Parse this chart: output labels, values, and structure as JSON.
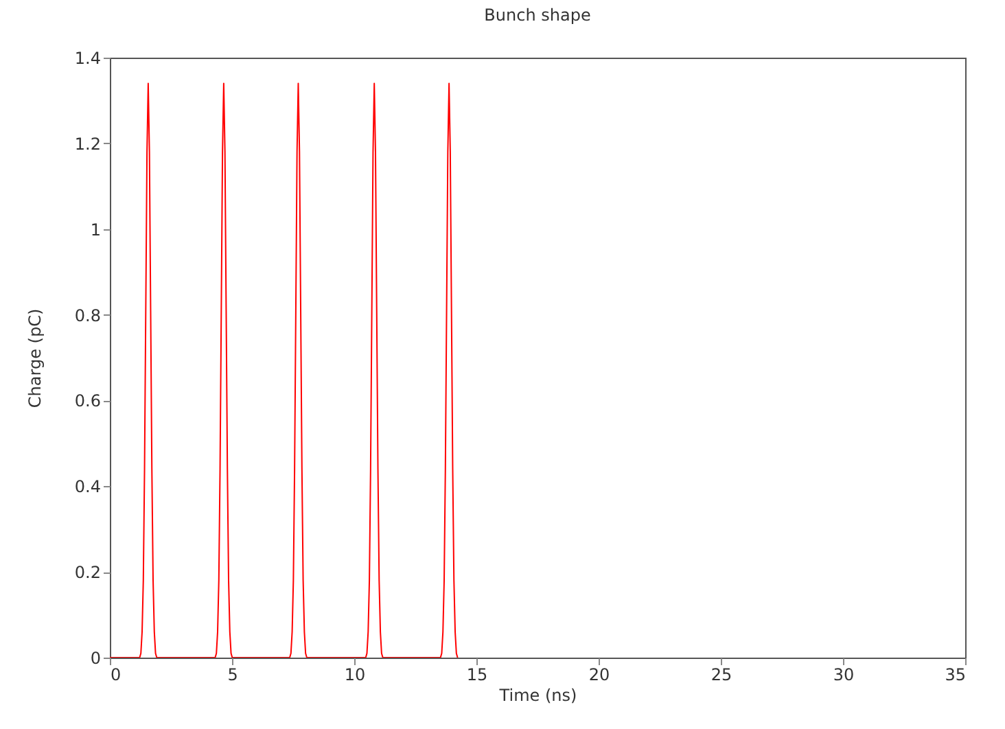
{
  "chart_data": {
    "type": "line",
    "title": "Bunch shape",
    "xlabel": "Time (ns)",
    "ylabel": "Charge (pC)",
    "xlim": [
      0,
      35
    ],
    "xticks": [
      0,
      5,
      10,
      15,
      20,
      25,
      30,
      35
    ],
    "ylim": [
      0,
      1.4
    ],
    "yticks": [
      0,
      0.2,
      0.4,
      0.6,
      0.8,
      1,
      1.2,
      1.4
    ],
    "grid": false,
    "marker": "none",
    "line_style": "solid",
    "series": [
      {
        "color": "#ff0000",
        "x": [
          0,
          1.22,
          1.27,
          1.32,
          1.37,
          1.42,
          1.47,
          1.52,
          1.57,
          1.62,
          1.67,
          1.72,
          1.77,
          1.82,
          1.87,
          1.92,
          4.31,
          4.36,
          4.41,
          4.46,
          4.51,
          4.56,
          4.61,
          4.66,
          4.71,
          4.76,
          4.81,
          4.86,
          4.91,
          4.96,
          5.01,
          7.36,
          7.41,
          7.46,
          7.51,
          7.56,
          7.61,
          7.66,
          7.71,
          7.76,
          7.81,
          7.86,
          7.91,
          7.96,
          8.01,
          8.06,
          10.47,
          10.52,
          10.57,
          10.62,
          10.67,
          10.72,
          10.77,
          10.82,
          10.87,
          10.92,
          10.97,
          11.02,
          11.07,
          11.12,
          11.17,
          13.53,
          13.58,
          13.63,
          13.68,
          13.73,
          13.78,
          13.83,
          13.88,
          13.93,
          13.98,
          14.03,
          14.08,
          14.13,
          14.18,
          14.23
        ],
        "values": [
          0,
          0,
          0.01,
          0.06,
          0.18,
          0.44,
          0.81,
          1.18,
          1.34,
          1.18,
          0.81,
          0.44,
          0.18,
          0.06,
          0.01,
          0,
          0,
          0.01,
          0.06,
          0.18,
          0.44,
          0.81,
          1.18,
          1.34,
          1.18,
          0.81,
          0.44,
          0.18,
          0.06,
          0.01,
          0,
          0,
          0.01,
          0.06,
          0.18,
          0.44,
          0.81,
          1.18,
          1.34,
          1.18,
          0.81,
          0.44,
          0.18,
          0.06,
          0.01,
          0,
          0,
          0.01,
          0.06,
          0.18,
          0.44,
          0.81,
          1.18,
          1.34,
          1.18,
          0.81,
          0.44,
          0.18,
          0.06,
          0.01,
          0,
          0,
          0.01,
          0.06,
          0.18,
          0.44,
          0.81,
          1.18,
          1.34,
          1.18,
          0.81,
          0.44,
          0.18,
          0.06,
          0.01,
          0
        ]
      }
    ]
  }
}
